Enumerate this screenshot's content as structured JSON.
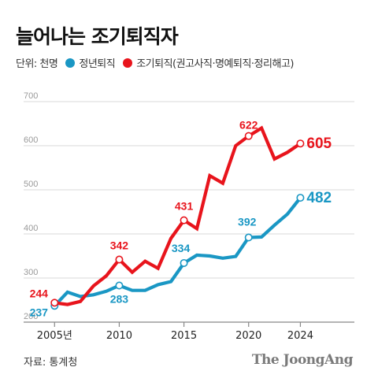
{
  "title": "늘어나는 조기퇴직자",
  "legend": {
    "unit": "단위: 천명",
    "items": [
      {
        "label": "정년퇴직",
        "color": "#1a97c4"
      },
      {
        "label": "조기퇴직(권고사직·명예퇴직·정리해고)",
        "color": "#e8141c"
      }
    ]
  },
  "source": "자료: 통계청",
  "logo": "The JoongAng",
  "chart_data": {
    "type": "line",
    "x_ticks": [
      "2005년",
      "2010",
      "2015",
      "2020",
      "2024"
    ],
    "y_ticks": [
      200,
      300,
      400,
      500,
      600,
      700
    ],
    "ylim": [
      200,
      700
    ],
    "xlim": [
      2002,
      2030
    ],
    "grid": true,
    "x": [
      2005,
      2006,
      2007,
      2008,
      2009,
      2010,
      2011,
      2012,
      2013,
      2014,
      2015,
      2016,
      2017,
      2018,
      2019,
      2020,
      2021,
      2022,
      2023,
      2024
    ],
    "series": [
      {
        "name": "정년퇴직",
        "color": "#1a97c4",
        "values": [
          237,
          268,
          258,
          262,
          270,
          283,
          272,
          272,
          285,
          292,
          334,
          352,
          350,
          345,
          349,
          392,
          393,
          420,
          445,
          482
        ],
        "labels": [
          {
            "x": 2005,
            "value": "237"
          },
          {
            "x": 2010,
            "value": "283"
          },
          {
            "x": 2015,
            "value": "334"
          },
          {
            "x": 2020,
            "value": "392"
          },
          {
            "x": 2024,
            "value": "482"
          }
        ]
      },
      {
        "name": "조기퇴직(권고사직·명예퇴직·정리해고)",
        "color": "#e8141c",
        "values": [
          244,
          240,
          247,
          282,
          305,
          342,
          313,
          338,
          322,
          390,
          431,
          412,
          532,
          515,
          600,
          622,
          640,
          570,
          585,
          605
        ],
        "labels": [
          {
            "x": 2005,
            "value": "244"
          },
          {
            "x": 2010,
            "value": "342"
          },
          {
            "x": 2015,
            "value": "431"
          },
          {
            "x": 2020,
            "value": "622"
          },
          {
            "x": 2024,
            "value": "605"
          }
        ]
      }
    ]
  }
}
